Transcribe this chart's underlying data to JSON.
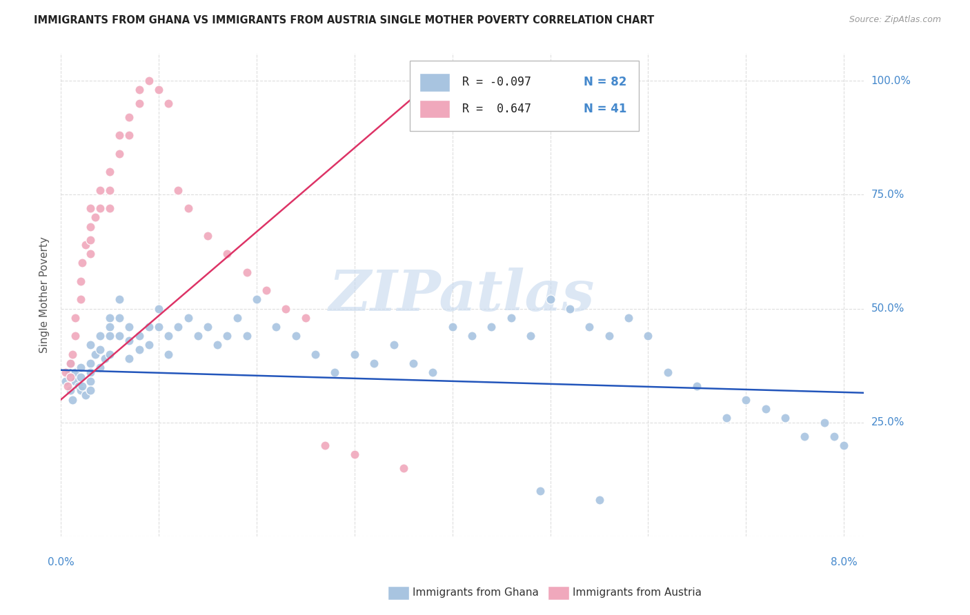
{
  "title": "IMMIGRANTS FROM GHANA VS IMMIGRANTS FROM AUSTRIA SINGLE MOTHER POVERTY CORRELATION CHART",
  "source": "Source: ZipAtlas.com",
  "ylabel": "Single Mother Poverty",
  "legend_ghana": "Immigrants from Ghana",
  "legend_austria": "Immigrants from Austria",
  "r_ghana": -0.097,
  "n_ghana": 82,
  "r_austria": 0.647,
  "n_austria": 41,
  "ghana_color": "#a8c4e0",
  "austria_color": "#f0a8bc",
  "ghana_line_color": "#2255bb",
  "austria_line_color": "#dd3366",
  "title_color": "#222222",
  "source_color": "#999999",
  "axis_label_color": "#4488cc",
  "ylabel_color": "#555555",
  "background_color": "#ffffff",
  "watermark": "ZIPatlas",
  "watermark_color": "#c5d8ee",
  "grid_color": "#dddddd",
  "xlim": [
    0.0,
    0.082
  ],
  "ylim": [
    0.0,
    1.06
  ],
  "x_ticks": [
    0.0,
    0.01,
    0.02,
    0.03,
    0.04,
    0.05,
    0.06,
    0.07,
    0.08
  ],
  "y_ticks": [
    0.0,
    0.25,
    0.5,
    0.75,
    1.0
  ],
  "ghana_x": [
    0.0005,
    0.0008,
    0.001,
    0.001,
    0.0012,
    0.0015,
    0.0015,
    0.0018,
    0.002,
    0.002,
    0.002,
    0.0022,
    0.0025,
    0.003,
    0.003,
    0.003,
    0.003,
    0.003,
    0.0035,
    0.004,
    0.004,
    0.004,
    0.0045,
    0.005,
    0.005,
    0.005,
    0.005,
    0.006,
    0.006,
    0.006,
    0.007,
    0.007,
    0.007,
    0.008,
    0.008,
    0.009,
    0.009,
    0.01,
    0.01,
    0.011,
    0.011,
    0.012,
    0.013,
    0.014,
    0.015,
    0.016,
    0.017,
    0.018,
    0.019,
    0.02,
    0.022,
    0.024,
    0.026,
    0.028,
    0.03,
    0.032,
    0.034,
    0.036,
    0.038,
    0.04,
    0.042,
    0.044,
    0.046,
    0.048,
    0.05,
    0.052,
    0.054,
    0.056,
    0.058,
    0.06,
    0.062,
    0.065,
    0.068,
    0.07,
    0.072,
    0.074,
    0.076,
    0.078,
    0.079,
    0.08,
    0.049,
    0.055
  ],
  "ghana_y": [
    0.34,
    0.36,
    0.32,
    0.38,
    0.3,
    0.34,
    0.36,
    0.33,
    0.32,
    0.35,
    0.37,
    0.33,
    0.31,
    0.42,
    0.38,
    0.36,
    0.34,
    0.32,
    0.4,
    0.44,
    0.41,
    0.37,
    0.39,
    0.48,
    0.46,
    0.44,
    0.4,
    0.52,
    0.48,
    0.44,
    0.46,
    0.43,
    0.39,
    0.44,
    0.41,
    0.46,
    0.42,
    0.5,
    0.46,
    0.44,
    0.4,
    0.46,
    0.48,
    0.44,
    0.46,
    0.42,
    0.44,
    0.48,
    0.44,
    0.52,
    0.46,
    0.44,
    0.4,
    0.36,
    0.4,
    0.38,
    0.42,
    0.38,
    0.36,
    0.46,
    0.44,
    0.46,
    0.48,
    0.44,
    0.52,
    0.5,
    0.46,
    0.44,
    0.48,
    0.44,
    0.36,
    0.33,
    0.26,
    0.3,
    0.28,
    0.26,
    0.22,
    0.25,
    0.22,
    0.2,
    0.1,
    0.08
  ],
  "austria_x": [
    0.0005,
    0.0007,
    0.001,
    0.001,
    0.0012,
    0.0015,
    0.0015,
    0.002,
    0.002,
    0.0022,
    0.0025,
    0.003,
    0.003,
    0.003,
    0.003,
    0.0035,
    0.004,
    0.004,
    0.005,
    0.005,
    0.005,
    0.006,
    0.006,
    0.007,
    0.007,
    0.008,
    0.008,
    0.009,
    0.01,
    0.011,
    0.012,
    0.013,
    0.015,
    0.017,
    0.019,
    0.021,
    0.023,
    0.025,
    0.027,
    0.03,
    0.035
  ],
  "austria_y": [
    0.36,
    0.33,
    0.38,
    0.35,
    0.4,
    0.44,
    0.48,
    0.52,
    0.56,
    0.6,
    0.64,
    0.68,
    0.72,
    0.65,
    0.62,
    0.7,
    0.76,
    0.72,
    0.8,
    0.76,
    0.72,
    0.88,
    0.84,
    0.92,
    0.88,
    0.98,
    0.95,
    1.0,
    0.98,
    0.95,
    0.76,
    0.72,
    0.66,
    0.62,
    0.58,
    0.54,
    0.5,
    0.48,
    0.2,
    0.18,
    0.15
  ],
  "ghana_trend_x": [
    0.0,
    0.082
  ],
  "ghana_trend_y": [
    0.365,
    0.315
  ],
  "austria_trend_x": [
    0.0,
    0.038
  ],
  "austria_trend_y": [
    0.3,
    1.0
  ]
}
